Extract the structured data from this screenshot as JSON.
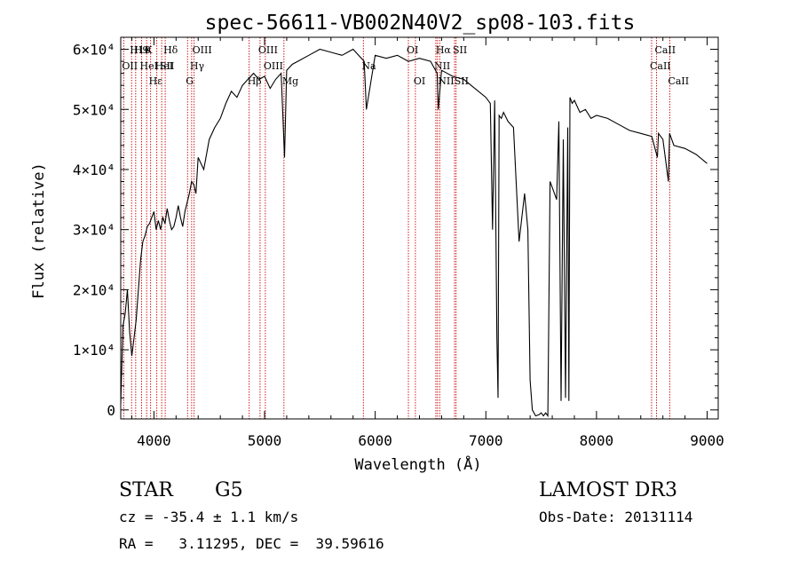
{
  "chart_data": {
    "type": "line",
    "title": "spec-56611-VB002N40V2_sp08-103.fits",
    "xlabel": "Wavelength (Å)",
    "ylabel": "Flux (relative)",
    "xlim": [
      3700,
      9100
    ],
    "ylim": [
      -1500,
      62000
    ],
    "x_ticks": [
      4000,
      5000,
      6000,
      7000,
      8000,
      9000
    ],
    "y_ticks": [
      {
        "value": 0,
        "label": "0"
      },
      {
        "value": 10000,
        "label": "1×10⁴"
      },
      {
        "value": 20000,
        "label": "2×10⁴"
      },
      {
        "value": 30000,
        "label": "3×10⁴"
      },
      {
        "value": 40000,
        "label": "4×10⁴"
      },
      {
        "value": 50000,
        "label": "5×10⁴"
      },
      {
        "value": 60000,
        "label": "6×10⁴"
      }
    ],
    "series": [
      {
        "x": [
          3700,
          3720,
          3740,
          3760,
          3780,
          3800,
          3820,
          3840,
          3860,
          3880,
          3900,
          3920,
          3940,
          3960,
          3980,
          4000,
          4020,
          4040,
          4060,
          4080,
          4100,
          4120,
          4140,
          4160,
          4180,
          4200,
          4220,
          4240,
          4260,
          4280,
          4300,
          4320,
          4340,
          4360,
          4380,
          4400,
          4450,
          4500,
          4550,
          4600,
          4650,
          4700,
          4750,
          4800,
          4850,
          4900,
          4950,
          5000,
          5050,
          5100,
          5150,
          5180,
          5200,
          5250,
          5300,
          5400,
          5500,
          5600,
          5700,
          5800,
          5900,
          5920,
          6000,
          6100,
          6200,
          6300,
          6400,
          6500,
          6560,
          6570,
          6600,
          6700,
          6800,
          6900,
          7000,
          7040,
          7060,
          7080,
          7100,
          7110,
          7120,
          7140,
          7160,
          7200,
          7250,
          7300,
          7350,
          7380,
          7400,
          7420,
          7450,
          7480,
          7500,
          7520,
          7540,
          7560,
          7580,
          7600,
          7640,
          7660,
          7680,
          7700,
          7720,
          7740,
          7750,
          7760,
          7780,
          7800,
          7850,
          7900,
          7950,
          8000,
          8100,
          8200,
          8300,
          8400,
          8500,
          8550,
          8560,
          8600,
          8650,
          8660,
          8700,
          8800,
          8900,
          9000
        ],
        "values": [
          1000,
          14000,
          16000,
          20000,
          13000,
          9000,
          12000,
          15000,
          20000,
          25000,
          28000,
          29000,
          30500,
          31000,
          32000,
          33000,
          30000,
          31500,
          30000,
          32000,
          31000,
          33500,
          31500,
          30000,
          30500,
          32000,
          34000,
          32000,
          30500,
          33000,
          34500,
          36000,
          38000,
          37500,
          36000,
          42000,
          40000,
          45000,
          47000,
          48500,
          51000,
          53000,
          52000,
          54000,
          55000,
          56000,
          55000,
          55500,
          53500,
          55000,
          56000,
          42000,
          56500,
          57500,
          58000,
          59000,
          60000,
          59500,
          59000,
          60000,
          58000,
          50000,
          59000,
          58500,
          59000,
          58000,
          58500,
          58000,
          56000,
          50000,
          56500,
          55500,
          55000,
          53500,
          52000,
          51000,
          30000,
          51500,
          12000,
          2000,
          49000,
          48500,
          49500,
          48000,
          47000,
          28000,
          36000,
          30000,
          5000,
          0,
          -1000,
          -800,
          -500,
          -1000,
          -500,
          -1000,
          38000,
          37000,
          35000,
          48000,
          1500,
          45000,
          2000,
          47000,
          1500,
          52000,
          51000,
          51500,
          49500,
          50000,
          48500,
          49000,
          48500,
          47500,
          46500,
          46000,
          45500,
          42000,
          46000,
          45000,
          38000,
          46000,
          44000,
          43500,
          42500,
          41000
        ]
      }
    ],
    "lines": [
      {
        "x": 3727,
        "label": "OII",
        "row": 1
      },
      {
        "x": 3798,
        "label": "H10",
        "row": 0
      },
      {
        "x": 3835,
        "label": "H9",
        "row": 0
      },
      {
        "x": 3889,
        "label": "HeI",
        "row": 1
      },
      {
        "x": 3934,
        "label": "K",
        "row": 0
      },
      {
        "x": 3970,
        "label": "Hε",
        "row": 2
      },
      {
        "x": 4026,
        "label": "HeI",
        "row": 1
      },
      {
        "x": 4070,
        "label": "SII",
        "row": 1
      },
      {
        "x": 4102,
        "label": "Hδ",
        "row": 0
      },
      {
        "x": 4304,
        "label": "G",
        "row": 2
      },
      {
        "x": 4341,
        "label": "Hγ",
        "row": 1
      },
      {
        "x": 4363,
        "label": "OIII",
        "row": 0
      },
      {
        "x": 4861,
        "label": "Hβ",
        "row": 2
      },
      {
        "x": 4959,
        "label": "OIII",
        "row": 0
      },
      {
        "x": 5007,
        "label": "OIII",
        "row": 1
      },
      {
        "x": 5175,
        "label": "Mg",
        "row": 2
      },
      {
        "x": 5893,
        "label": "Na",
        "row": 1
      },
      {
        "x": 6300,
        "label": "OI",
        "row": 0
      },
      {
        "x": 6363,
        "label": "OI",
        "row": 2
      },
      {
        "x": 6548,
        "label": "NII",
        "row": 1
      },
      {
        "x": 6563,
        "label": "Hα",
        "row": 0
      },
      {
        "x": 6583,
        "label": "NII",
        "row": 2
      },
      {
        "x": 6717,
        "label": "SII",
        "row": 0
      },
      {
        "x": 6731,
        "label": "SII",
        "row": 2
      },
      {
        "x": 8498,
        "label": "CaII",
        "row": 1
      },
      {
        "x": 8542,
        "label": "CaII",
        "row": 0
      },
      {
        "x": 8662,
        "label": "CaII",
        "row": 2
      }
    ],
    "line_color": "#cc0000",
    "spectrum_color": "#000000"
  },
  "info": {
    "object_class": "STAR",
    "subclass": "G5",
    "survey": "LAMOST DR3",
    "redshift": "cz = -35.4 ± 1.1 km/s",
    "obs_date": "Obs-Date: 20131114",
    "coords": "RA =   3.11295, DEC =  39.59616"
  }
}
